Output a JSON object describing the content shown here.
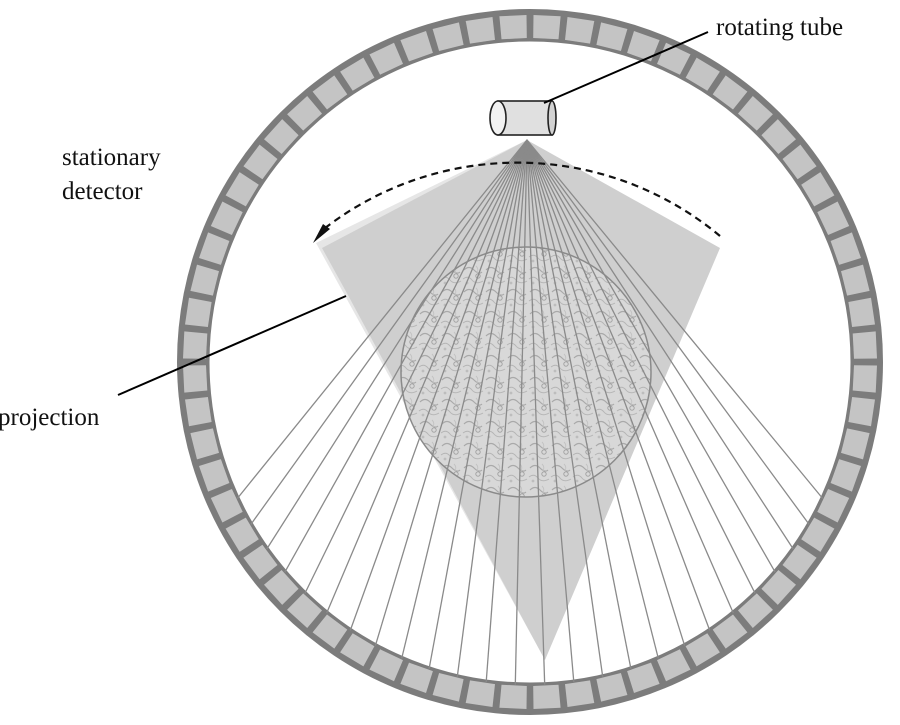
{
  "labels": {
    "rotating_tube": "rotating tube",
    "stationary_detector_line1": "stationary",
    "stationary_detector_line2": "detector",
    "projection": "projection"
  },
  "colors": {
    "ring_outline": "#7a7a7a",
    "detector_cell": "#c4c4c4",
    "fan_beam": "#cfcfcf",
    "rays": "#8a8a8a",
    "object": "#dcdcdc",
    "leader_lines": "#000000"
  },
  "detector_ring": {
    "cell_count": 64
  },
  "fan_beam": {
    "ray_count": 26
  }
}
